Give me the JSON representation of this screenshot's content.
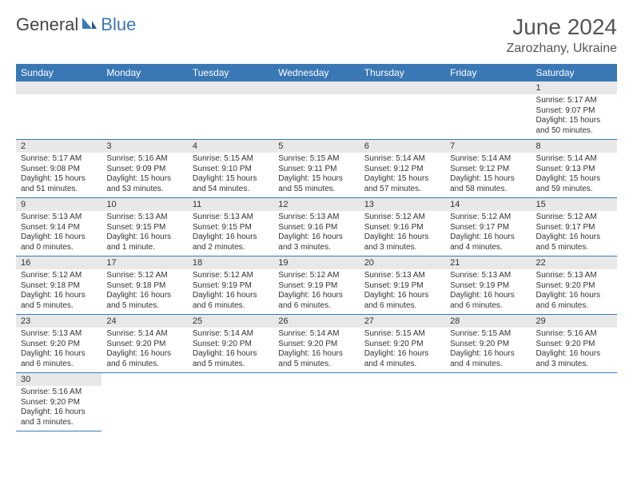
{
  "brand": {
    "part1": "General",
    "part2": "Blue"
  },
  "title": "June 2024",
  "location": "Zarozhany, Ukraine",
  "style": {
    "header_bg": "#3a78b5",
    "header_fg": "#ffffff",
    "daynum_bg": "#e8e8e8",
    "row_border": "#3a78b5",
    "page_bg": "#ffffff",
    "text_color": "#333333",
    "title_fontsize": 28,
    "location_fontsize": 16,
    "dayhead_fontsize": 12,
    "body_fontsize": 10
  },
  "day_headers": [
    "Sunday",
    "Monday",
    "Tuesday",
    "Wednesday",
    "Thursday",
    "Friday",
    "Saturday"
  ],
  "weeks": [
    [
      null,
      null,
      null,
      null,
      null,
      null,
      {
        "n": "1",
        "sr": "Sunrise: 5:17 AM",
        "ss": "Sunset: 9:07 PM",
        "dl": "Daylight: 15 hours and 50 minutes."
      }
    ],
    [
      {
        "n": "2",
        "sr": "Sunrise: 5:17 AM",
        "ss": "Sunset: 9:08 PM",
        "dl": "Daylight: 15 hours and 51 minutes."
      },
      {
        "n": "3",
        "sr": "Sunrise: 5:16 AM",
        "ss": "Sunset: 9:09 PM",
        "dl": "Daylight: 15 hours and 53 minutes."
      },
      {
        "n": "4",
        "sr": "Sunrise: 5:15 AM",
        "ss": "Sunset: 9:10 PM",
        "dl": "Daylight: 15 hours and 54 minutes."
      },
      {
        "n": "5",
        "sr": "Sunrise: 5:15 AM",
        "ss": "Sunset: 9:11 PM",
        "dl": "Daylight: 15 hours and 55 minutes."
      },
      {
        "n": "6",
        "sr": "Sunrise: 5:14 AM",
        "ss": "Sunset: 9:12 PM",
        "dl": "Daylight: 15 hours and 57 minutes."
      },
      {
        "n": "7",
        "sr": "Sunrise: 5:14 AM",
        "ss": "Sunset: 9:12 PM",
        "dl": "Daylight: 15 hours and 58 minutes."
      },
      {
        "n": "8",
        "sr": "Sunrise: 5:14 AM",
        "ss": "Sunset: 9:13 PM",
        "dl": "Daylight: 15 hours and 59 minutes."
      }
    ],
    [
      {
        "n": "9",
        "sr": "Sunrise: 5:13 AM",
        "ss": "Sunset: 9:14 PM",
        "dl": "Daylight: 16 hours and 0 minutes."
      },
      {
        "n": "10",
        "sr": "Sunrise: 5:13 AM",
        "ss": "Sunset: 9:15 PM",
        "dl": "Daylight: 16 hours and 1 minute."
      },
      {
        "n": "11",
        "sr": "Sunrise: 5:13 AM",
        "ss": "Sunset: 9:15 PM",
        "dl": "Daylight: 16 hours and 2 minutes."
      },
      {
        "n": "12",
        "sr": "Sunrise: 5:13 AM",
        "ss": "Sunset: 9:16 PM",
        "dl": "Daylight: 16 hours and 3 minutes."
      },
      {
        "n": "13",
        "sr": "Sunrise: 5:12 AM",
        "ss": "Sunset: 9:16 PM",
        "dl": "Daylight: 16 hours and 3 minutes."
      },
      {
        "n": "14",
        "sr": "Sunrise: 5:12 AM",
        "ss": "Sunset: 9:17 PM",
        "dl": "Daylight: 16 hours and 4 minutes."
      },
      {
        "n": "15",
        "sr": "Sunrise: 5:12 AM",
        "ss": "Sunset: 9:17 PM",
        "dl": "Daylight: 16 hours and 5 minutes."
      }
    ],
    [
      {
        "n": "16",
        "sr": "Sunrise: 5:12 AM",
        "ss": "Sunset: 9:18 PM",
        "dl": "Daylight: 16 hours and 5 minutes."
      },
      {
        "n": "17",
        "sr": "Sunrise: 5:12 AM",
        "ss": "Sunset: 9:18 PM",
        "dl": "Daylight: 16 hours and 5 minutes."
      },
      {
        "n": "18",
        "sr": "Sunrise: 5:12 AM",
        "ss": "Sunset: 9:19 PM",
        "dl": "Daylight: 16 hours and 6 minutes."
      },
      {
        "n": "19",
        "sr": "Sunrise: 5:12 AM",
        "ss": "Sunset: 9:19 PM",
        "dl": "Daylight: 16 hours and 6 minutes."
      },
      {
        "n": "20",
        "sr": "Sunrise: 5:13 AM",
        "ss": "Sunset: 9:19 PM",
        "dl": "Daylight: 16 hours and 6 minutes."
      },
      {
        "n": "21",
        "sr": "Sunrise: 5:13 AM",
        "ss": "Sunset: 9:19 PM",
        "dl": "Daylight: 16 hours and 6 minutes."
      },
      {
        "n": "22",
        "sr": "Sunrise: 5:13 AM",
        "ss": "Sunset: 9:20 PM",
        "dl": "Daylight: 16 hours and 6 minutes."
      }
    ],
    [
      {
        "n": "23",
        "sr": "Sunrise: 5:13 AM",
        "ss": "Sunset: 9:20 PM",
        "dl": "Daylight: 16 hours and 6 minutes."
      },
      {
        "n": "24",
        "sr": "Sunrise: 5:14 AM",
        "ss": "Sunset: 9:20 PM",
        "dl": "Daylight: 16 hours and 6 minutes."
      },
      {
        "n": "25",
        "sr": "Sunrise: 5:14 AM",
        "ss": "Sunset: 9:20 PM",
        "dl": "Daylight: 16 hours and 5 minutes."
      },
      {
        "n": "26",
        "sr": "Sunrise: 5:14 AM",
        "ss": "Sunset: 9:20 PM",
        "dl": "Daylight: 16 hours and 5 minutes."
      },
      {
        "n": "27",
        "sr": "Sunrise: 5:15 AM",
        "ss": "Sunset: 9:20 PM",
        "dl": "Daylight: 16 hours and 4 minutes."
      },
      {
        "n": "28",
        "sr": "Sunrise: 5:15 AM",
        "ss": "Sunset: 9:20 PM",
        "dl": "Daylight: 16 hours and 4 minutes."
      },
      {
        "n": "29",
        "sr": "Sunrise: 5:16 AM",
        "ss": "Sunset: 9:20 PM",
        "dl": "Daylight: 16 hours and 3 minutes."
      }
    ],
    [
      {
        "n": "30",
        "sr": "Sunrise: 5:16 AM",
        "ss": "Sunset: 9:20 PM",
        "dl": "Daylight: 16 hours and 3 minutes."
      },
      null,
      null,
      null,
      null,
      null,
      null
    ]
  ]
}
